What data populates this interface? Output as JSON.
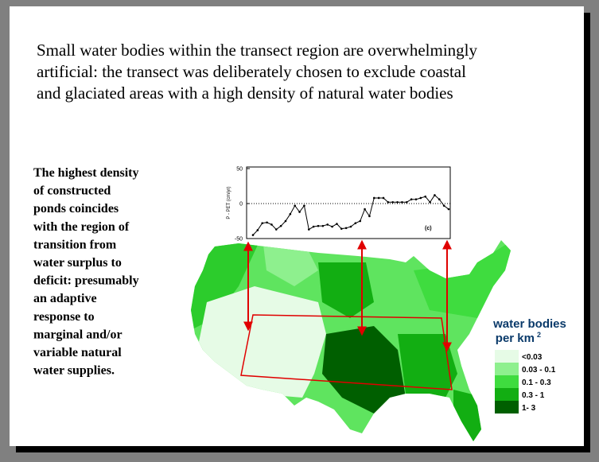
{
  "slide": {
    "intro": [
      "Small water bodies within the transect region are overwhelmingly",
      "artificial: the transect was deliberately chosen to exclude coastal",
      "and glaciated areas with a high density of natural water bodies"
    ],
    "side": [
      "The highest density",
      "of constructed",
      "ponds coincides",
      "with the region of",
      "transition from",
      "water surplus to",
      "deficit: presumably",
      "an adaptive",
      "response to",
      "marginal and/or",
      "variable natural",
      "water supplies."
    ],
    "legend": {
      "title": "water bodies",
      "subtitle": "per km",
      "subtitle_sup": "2",
      "items": [
        {
          "label": "<0.03",
          "color": "#e6fbe6"
        },
        {
          "label": "0.03 - 0.1",
          "color": "#8ef08e"
        },
        {
          "label": "0.1 - 0.3",
          "color": "#3fdc3f"
        },
        {
          "label": "0.3 - 1",
          "color": "#12ae12"
        },
        {
          "label": "1- 3",
          "color": "#005f00"
        }
      ]
    }
  },
  "chart_data": {
    "type": "line",
    "ylabel": "P - PET (cm/yr)",
    "annotation": "(c)",
    "color": "#000000",
    "values": [
      -45,
      -38,
      -28,
      -27,
      -30,
      -37,
      -32,
      -25,
      -15,
      -3,
      -12,
      -3,
      -37,
      -33,
      -32,
      -32,
      -30,
      -33,
      -29,
      -36,
      -35,
      -33,
      -28,
      -25,
      -8,
      -18,
      8,
      8,
      8,
      2,
      2,
      2,
      2,
      2,
      6,
      6,
      8,
      10,
      2,
      12,
      6,
      -3,
      -8
    ],
    "ylim": [
      -50,
      50
    ],
    "yticks": [
      50,
      0,
      -50
    ],
    "hline": 0
  }
}
